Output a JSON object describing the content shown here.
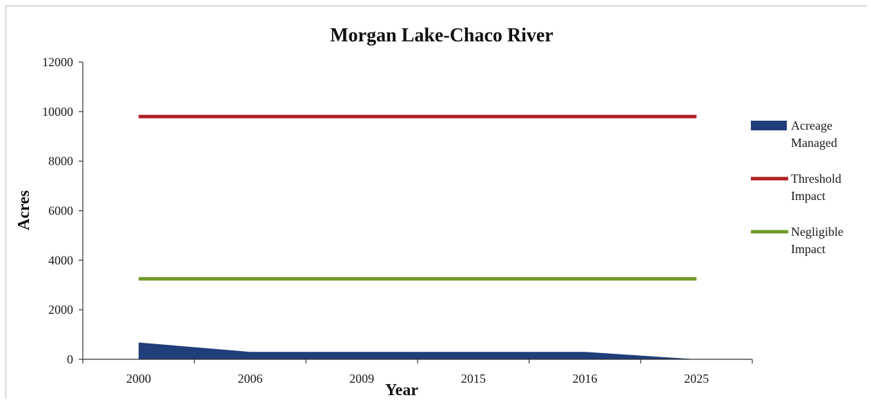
{
  "chart_data": {
    "type": "area",
    "title": "Morgan Lake-Chaco River",
    "xlabel": "Year",
    "ylabel": "Acres",
    "categories": [
      "2000",
      "2006",
      "2009",
      "2015",
      "2016",
      "2025"
    ],
    "ylim": [
      0,
      12000
    ],
    "yticks": [
      0,
      2000,
      4000,
      6000,
      8000,
      10000,
      12000
    ],
    "grid": false,
    "legend_position": "right",
    "series": [
      {
        "name": "Acreage Managed",
        "kind": "area",
        "color": "#1f3e7a",
        "values": [
          680,
          300,
          300,
          300,
          300,
          0
        ],
        "legend_lines": [
          "Acreage",
          "Managed"
        ]
      },
      {
        "name": "Threshold Impact",
        "kind": "line",
        "color": "#b01f24",
        "values": [
          9800,
          9800,
          9800,
          9800,
          9800,
          9800
        ],
        "legend_lines": [
          "Threshold",
          "Impact"
        ]
      },
      {
        "name": "Negligible Impact",
        "kind": "line",
        "color": "#6f9a2a",
        "values": [
          3250,
          3250,
          3250,
          3250,
          3250,
          3250
        ],
        "legend_lines": [
          "Negligible",
          "Impact"
        ]
      }
    ]
  }
}
